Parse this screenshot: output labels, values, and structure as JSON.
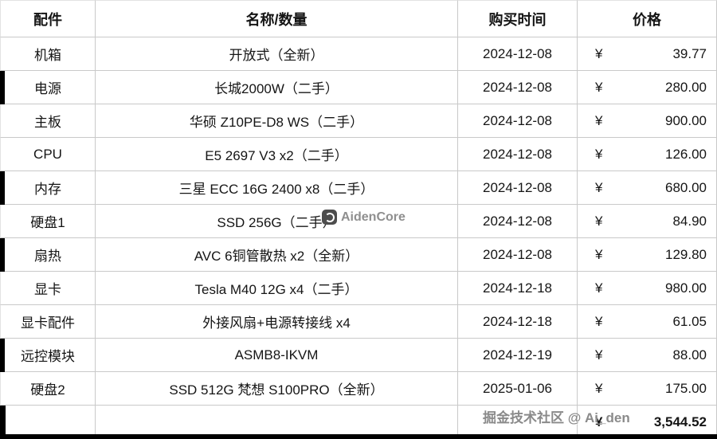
{
  "table": {
    "headers": [
      "配件",
      "名称/数量",
      "购买时间",
      "价格"
    ],
    "currency_symbol": "¥",
    "rows": [
      {
        "part": "机箱",
        "name": "开放式（全新）",
        "date": "2024-12-08",
        "price": "39.77"
      },
      {
        "part": "电源",
        "name": "长城2000W（二手）",
        "date": "2024-12-08",
        "price": "280.00"
      },
      {
        "part": "主板",
        "name": "华硕 Z10PE-D8 WS（二手）",
        "date": "2024-12-08",
        "price": "900.00"
      },
      {
        "part": "CPU",
        "name": "E5 2697 V3 x2（二手）",
        "date": "2024-12-08",
        "price": "126.00"
      },
      {
        "part": "内存",
        "name": "三星 ECC 16G 2400 x8（二手）",
        "date": "2024-12-08",
        "price": "680.00"
      },
      {
        "part": "硬盘1",
        "name": "SSD 256G（二手）",
        "date": "2024-12-08",
        "price": "84.90"
      },
      {
        "part": "扇热",
        "name": "AVC 6铜管散热 x2（全新）",
        "date": "2024-12-08",
        "price": "129.80"
      },
      {
        "part": "显卡",
        "name": "Tesla M40 12G x4（二手）",
        "date": "2024-12-18",
        "price": "980.00"
      },
      {
        "part": "显卡配件",
        "name": "外接风扇+电源转接线 x4",
        "date": "2024-12-18",
        "price": "61.05"
      },
      {
        "part": "远控模块",
        "name": "ASMB8-IKVM",
        "date": "2024-12-19",
        "price": "88.00"
      },
      {
        "part": "硬盘2",
        "name": "SSD 512G 梵想 S100PRO（全新）",
        "date": "2025-01-06",
        "price": "175.00"
      }
    ],
    "total": {
      "currency_symbol": "¥",
      "amount": "3,544.52"
    }
  },
  "watermarks": {
    "mid_text": "AidenCore",
    "bottom_text": "掘金技术社区 @ Ai_den"
  }
}
